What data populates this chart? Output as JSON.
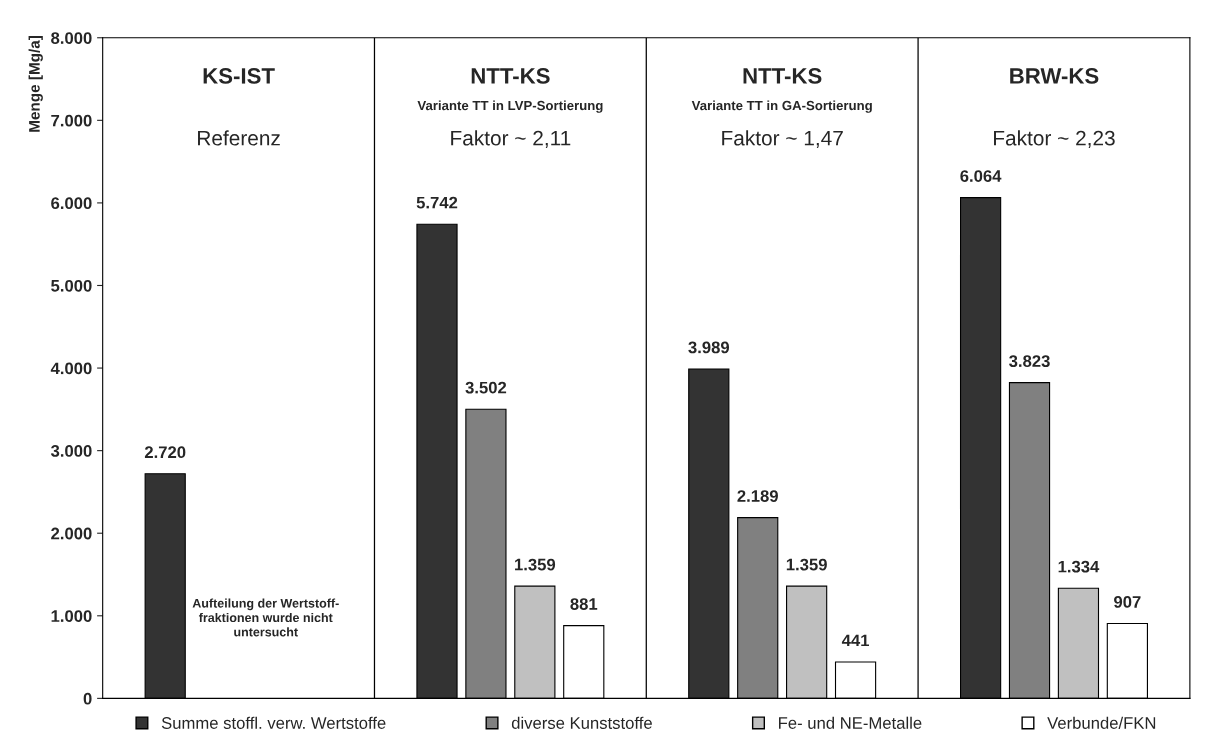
{
  "chart_data": {
    "type": "bar",
    "categories": [
      "KS-IST\nReferenz",
      "NTT-KS\nVariante TT in LVP-Sortierung\nFaktor ~ 2,11",
      "NTT-KS\nVariante TT in GA-Sortierung\nFaktor ~ 1,47",
      "BRW-KS\nFaktor ~ 2,23"
    ],
    "ylabel": "Menge [Mg/a]",
    "series": [
      {
        "name": "Summe stoffl. verw. Wertstoffe",
        "color": "#333333",
        "values": [
          2720,
          5742,
          3989,
          6064
        ],
        "value_labels": [
          "2.720",
          "5.742",
          "3.989",
          "6.064"
        ]
      },
      {
        "name": "diverse Kunststoffe",
        "color": "#808080",
        "values": [
          null,
          3502,
          2189,
          3823
        ],
        "value_labels": [
          null,
          "3.502",
          "2.189",
          "3.823"
        ]
      },
      {
        "name": "Fe- und NE-Metalle",
        "color": "#c0c0c0",
        "values": [
          null,
          1359,
          1359,
          1334
        ],
        "value_labels": [
          null,
          "1.359",
          "1.359",
          "1.334"
        ]
      },
      {
        "name": "Verbunde/FKN",
        "color": "#ffffff",
        "values": [
          null,
          881,
          441,
          907
        ],
        "value_labels": [
          null,
          "881",
          "441",
          "907"
        ]
      }
    ],
    "annotations": [
      "Aufteilung der Wertstoff-\nfraktionen wurde nicht\nuntersucht"
    ],
    "ylim": [
      0,
      8000
    ],
    "yticks": [
      {
        "value": 0,
        "label": "0"
      },
      {
        "value": 1000,
        "label": "1.000"
      },
      {
        "value": 2000,
        "label": "2.000"
      },
      {
        "value": 3000,
        "label": "3.000"
      },
      {
        "value": 4000,
        "label": "4.000"
      },
      {
        "value": 5000,
        "label": "5.000"
      },
      {
        "value": 6000,
        "label": "6.000"
      },
      {
        "value": 7000,
        "label": "7.000"
      },
      {
        "value": 8000,
        "label": "8.000"
      }
    ],
    "grid": false,
    "legend": "bottom"
  }
}
